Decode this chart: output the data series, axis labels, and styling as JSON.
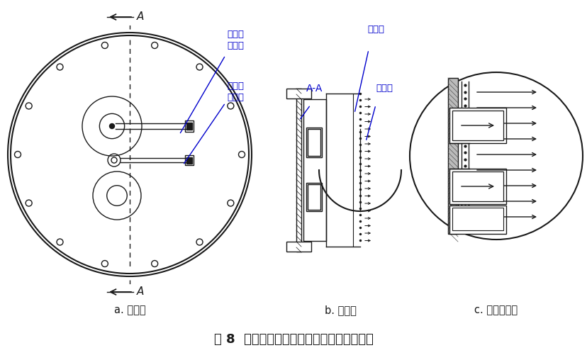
{
  "title": "图 8  优化后的尾端端面法兰进气结构示意图",
  "label_a": "a. 正视图",
  "label_b": "b. 侧视图",
  "label_c": "c. 局部放大图",
  "annotation_flange": "尾端端\n面法兰",
  "annotation_pipe": "尾端进\n气管道",
  "annotation_plate": "均气板",
  "annotation_hole": "通气孔",
  "annotation_aa": "A-A",
  "bg_color": "#ffffff",
  "line_color": "#1a1a1a",
  "title_fontsize": 13,
  "label_fontsize": 10.5,
  "annot_fontsize": 9.5
}
